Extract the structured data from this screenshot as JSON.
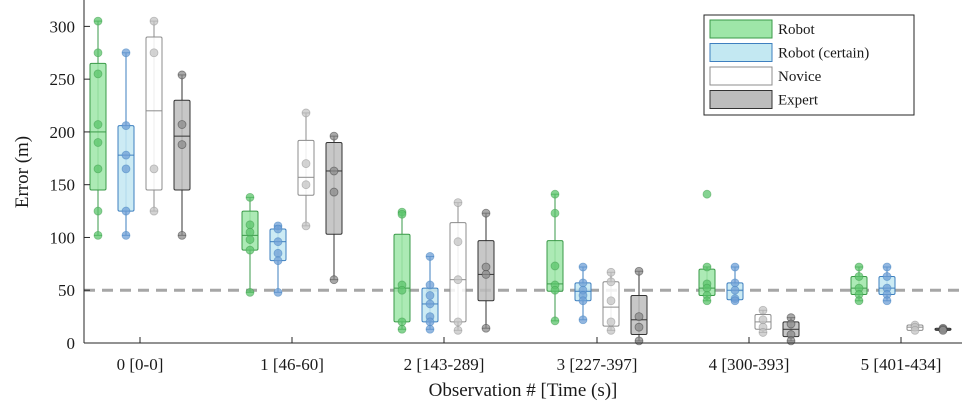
{
  "chart_data": {
    "type": "box",
    "xlabel": "Observation # [Time (s)]",
    "ylabel": "Error (m)",
    "ylim": [
      0,
      325
    ],
    "yticks": [
      0,
      50,
      100,
      150,
      200,
      250,
      300
    ],
    "categories": [
      "0 [0-0]",
      "1 [46-60]",
      "2 [143-289]",
      "3 [227-397]",
      "4 [300-393]",
      "5 [401-434]"
    ],
    "reference_line": {
      "y": 50,
      "style": "dashed",
      "color": "#a6a6a6"
    },
    "legend": {
      "position": "top-right"
    },
    "series": [
      {
        "name": "Robot",
        "fill": "#9ee6a8",
        "stroke": "#3a9a48",
        "point": "#5cc46c",
        "boxes": [
          {
            "min": 102,
            "q1": 145,
            "median": 200,
            "q3": 265,
            "max": 305,
            "points": [
              305,
              275,
              255,
              207,
              190,
              165,
              125,
              102
            ]
          },
          {
            "min": 48,
            "q1": 88,
            "median": 102,
            "q3": 125,
            "max": 138,
            "points": [
              138,
              112,
              105,
              98,
              88,
              48
            ]
          },
          {
            "min": 13,
            "q1": 20,
            "median": 52,
            "q3": 103,
            "max": 124,
            "points": [
              124,
              122,
              55,
              50,
              20,
              13
            ]
          },
          {
            "min": 21,
            "q1": 49,
            "median": 56,
            "q3": 97,
            "max": 141,
            "points": [
              141,
              123,
              73,
              55,
              50,
              21
            ]
          },
          {
            "min": 40,
            "q1": 45,
            "median": 52,
            "q3": 70,
            "max": 72,
            "outliers": [
              141
            ],
            "points": [
              141,
              72,
              56,
              52,
              45,
              40
            ]
          },
          {
            "min": 40,
            "q1": 46,
            "median": 52,
            "q3": 63,
            "max": 72,
            "points": [
              72,
              63,
              52,
              46,
              40
            ]
          }
        ]
      },
      {
        "name": "Robot (certain)",
        "fill": "#c3e8f2",
        "stroke": "#3e7fbf",
        "point": "#6f9fd6",
        "boxes": [
          {
            "min": 102,
            "q1": 125,
            "median": 178,
            "q3": 206,
            "max": 275,
            "points": [
              275,
              206,
              178,
              165,
              125,
              102
            ]
          },
          {
            "min": 48,
            "q1": 78,
            "median": 96,
            "q3": 108,
            "max": 111,
            "points": [
              111,
              108,
              96,
              85,
              78,
              48
            ]
          },
          {
            "min": 13,
            "q1": 20,
            "median": 37,
            "q3": 52,
            "max": 82,
            "points": [
              82,
              55,
              45,
              37,
              25,
              20,
              13
            ]
          },
          {
            "min": 22,
            "q1": 40,
            "median": 49,
            "q3": 57,
            "max": 72,
            "points": [
              72,
              57,
              50,
              45,
              40,
              22
            ]
          },
          {
            "min": 40,
            "q1": 41,
            "median": 50,
            "q3": 57,
            "max": 72,
            "points": [
              72,
              57,
              50,
              42,
              40
            ]
          },
          {
            "min": 40,
            "q1": 46,
            "median": 52,
            "q3": 63,
            "max": 72,
            "points": [
              72,
              63,
              52,
              46,
              40
            ]
          }
        ]
      },
      {
        "name": "Novice",
        "fill": "#ffffff",
        "stroke": "#8c8c8c",
        "point": "#c4c4c4",
        "boxes": [
          {
            "min": 125,
            "q1": 145,
            "median": 220,
            "q3": 290,
            "max": 305,
            "points": [
              305,
              275,
              165,
              125
            ]
          },
          {
            "min": 111,
            "q1": 140,
            "median": 157,
            "q3": 192,
            "max": 218,
            "points": [
              218,
              170,
              150,
              111
            ]
          },
          {
            "min": 12,
            "q1": 20,
            "median": 60,
            "q3": 114,
            "max": 133,
            "points": [
              133,
              96,
              60,
              20,
              12
            ]
          },
          {
            "min": 12,
            "q1": 16,
            "median": 34,
            "q3": 58,
            "max": 67,
            "points": [
              67,
              58,
              40,
              20,
              12
            ]
          },
          {
            "min": 10,
            "q1": 13,
            "median": 20,
            "q3": 27,
            "max": 31,
            "points": [
              31,
              22,
              15,
              10
            ]
          },
          {
            "min": 12,
            "q1": 12,
            "median": 15,
            "q3": 17,
            "max": 17,
            "points": [
              17,
              15,
              12
            ]
          }
        ]
      },
      {
        "name": "Expert",
        "fill": "#bdbdbd",
        "stroke": "#333333",
        "point": "#8c8c8c",
        "boxes": [
          {
            "min": 102,
            "q1": 145,
            "median": 196,
            "q3": 230,
            "max": 254,
            "points": [
              254,
              207,
              188,
              102
            ]
          },
          {
            "min": 60,
            "q1": 103,
            "median": 163,
            "q3": 190,
            "max": 196,
            "points": [
              196,
              163,
              143,
              60
            ]
          },
          {
            "min": 14,
            "q1": 40,
            "median": 65,
            "q3": 97,
            "max": 123,
            "points": [
              123,
              72,
              65,
              14
            ]
          },
          {
            "min": 2,
            "q1": 8,
            "median": 22,
            "q3": 45,
            "max": 68,
            "points": [
              68,
              25,
              15,
              2
            ]
          },
          {
            "min": 2,
            "q1": 6,
            "median": 13,
            "q3": 20,
            "max": 24,
            "points": [
              24,
              18,
              8,
              2
            ]
          },
          {
            "min": 11,
            "q1": 12,
            "median": 13,
            "q3": 14,
            "max": 14,
            "points": [
              14,
              13,
              12
            ]
          }
        ]
      }
    ]
  }
}
